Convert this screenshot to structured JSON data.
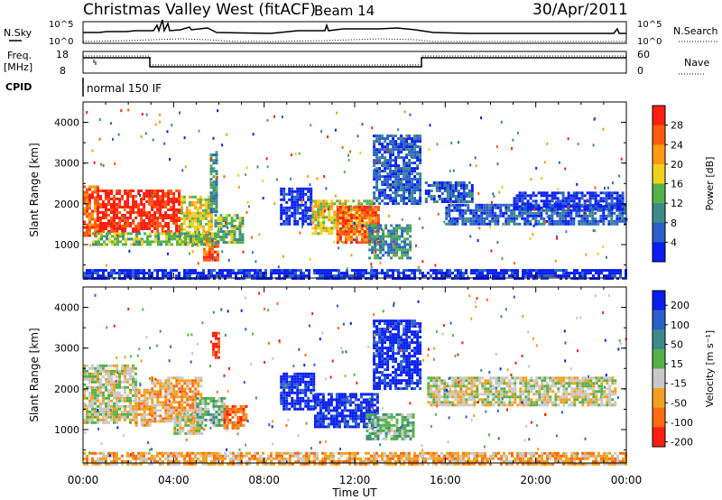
{
  "header": {
    "title": "Christmas Valley West (fitACF)",
    "beam": "Beam 14",
    "date": "30/Apr/2011"
  },
  "panels": {
    "nsky": {
      "label": "N.Sky",
      "ticks_left": [
        "10^5",
        "10^0"
      ],
      "ticks_right": [
        "10^5",
        "10^0"
      ],
      "right_label": "N.Search"
    },
    "freq": {
      "label_1": "Freq.",
      "label_2": "[MHz]",
      "ticks_left": [
        "18",
        "8"
      ],
      "ticks_right": [
        "60",
        "0"
      ],
      "right_label": "Nave"
    },
    "cpid": {
      "label": "CPID",
      "value": "normal 150 IF"
    }
  },
  "chart_data": [
    {
      "type": "heatmap",
      "name": "power",
      "xlabel": "Time UT",
      "ylabel": "Slant Range [km]",
      "x_ticks": [
        "00:00",
        "04:00",
        "08:00",
        "12:00",
        "16:00",
        "20:00",
        "00:00"
      ],
      "y_ticks": [
        "1000",
        "2000",
        "3000",
        "4000"
      ],
      "xlim": [
        0,
        24
      ],
      "ylim": [
        180,
        4500
      ],
      "colorbar": {
        "label": "Power [dB]",
        "tick_labels": [
          "4",
          "8",
          "12",
          "16",
          "20",
          "24",
          "28"
        ],
        "colors": [
          "#0a1ef0",
          "#2a60c8",
          "#3c8a8a",
          "#56b24a",
          "#f0d11e",
          "#fd9a14",
          "#fd5a10",
          "#ff1e10"
        ]
      },
      "regions": [
        {
          "t0": 0.0,
          "t1": 0.6,
          "r0": 1250,
          "r1": 2450,
          "level": 6
        },
        {
          "t0": 0.6,
          "t1": 4.3,
          "r0": 1350,
          "r1": 2350,
          "level": 7
        },
        {
          "t0": 4.3,
          "t1": 5.7,
          "r0": 950,
          "r1": 2200,
          "level": 4
        },
        {
          "t0": 5.3,
          "t1": 5.9,
          "r0": 650,
          "r1": 1250,
          "level": 6
        },
        {
          "t0": 5.8,
          "t1": 7.1,
          "r0": 1050,
          "r1": 1750,
          "level": 3
        },
        {
          "t0": 0.4,
          "t1": 5.9,
          "r0": 1000,
          "r1": 1300,
          "level": 3
        },
        {
          "t0": 5.6,
          "t1": 5.9,
          "r0": 1800,
          "r1": 3300,
          "level": 2
        },
        {
          "t0": 8.7,
          "t1": 10.1,
          "r0": 1500,
          "r1": 2400,
          "level": 0
        },
        {
          "t0": 10.1,
          "t1": 12.8,
          "r0": 1250,
          "r1": 2100,
          "level": 4
        },
        {
          "t0": 11.2,
          "t1": 13.1,
          "r0": 1050,
          "r1": 1950,
          "level": 6
        },
        {
          "t0": 12.6,
          "t1": 14.4,
          "r0": 700,
          "r1": 1500,
          "level": 2
        },
        {
          "t0": 12.8,
          "t1": 14.9,
          "r0": 2000,
          "r1": 3700,
          "level": 1
        },
        {
          "t0": 15.1,
          "t1": 17.2,
          "r0": 2050,
          "r1": 2550,
          "level": 1
        },
        {
          "t0": 16.0,
          "t1": 23.9,
          "r0": 1500,
          "r1": 2000,
          "level": 1
        },
        {
          "t0": 19.0,
          "t1": 23.9,
          "r0": 1900,
          "r1": 2300,
          "level": 0
        },
        {
          "t0": 0.0,
          "t1": 24.0,
          "r0": 180,
          "r1": 400,
          "level": 0
        }
      ]
    },
    {
      "type": "heatmap",
      "name": "velocity",
      "xlabel": "Time UT",
      "ylabel": "Slant Range [km]",
      "x_ticks": [
        "00:00",
        "04:00",
        "08:00",
        "12:00",
        "16:00",
        "20:00",
        "00:00"
      ],
      "y_ticks": [
        "1000",
        "2000",
        "3000",
        "4000"
      ],
      "xlim": [
        0,
        24
      ],
      "ylim": [
        180,
        4500
      ],
      "colorbar": {
        "label": "Velocity [m s⁻¹]",
        "tick_labels": [
          "200",
          "100",
          "50",
          "15",
          "-15",
          "-50",
          "-100",
          "-200"
        ],
        "colors": [
          "#0a1ef0",
          "#2a60c8",
          "#3c8a8a",
          "#56b24a",
          "#c8c8c8",
          "#f0a11e",
          "#fd6a14",
          "#ff1e10"
        ]
      },
      "regions": [
        {
          "t0": 0.0,
          "t1": 2.3,
          "r0": 1150,
          "r1": 2600,
          "level": 4
        },
        {
          "t0": 2.3,
          "t1": 3.0,
          "r0": 1100,
          "r1": 2000,
          "level": 5
        },
        {
          "t0": 3.0,
          "t1": 5.2,
          "r0": 1200,
          "r1": 2300,
          "level": 5
        },
        {
          "t0": 4.0,
          "t1": 5.2,
          "r0": 900,
          "r1": 1400,
          "level": 4
        },
        {
          "t0": 5.0,
          "t1": 6.2,
          "r0": 1100,
          "r1": 1800,
          "level": 3
        },
        {
          "t0": 6.2,
          "t1": 7.2,
          "r0": 1050,
          "r1": 1600,
          "level": 6
        },
        {
          "t0": 8.7,
          "t1": 10.2,
          "r0": 1500,
          "r1": 2400,
          "level": 0
        },
        {
          "t0": 10.2,
          "t1": 13.0,
          "r0": 1100,
          "r1": 1900,
          "level": 0
        },
        {
          "t0": 12.5,
          "t1": 14.6,
          "r0": 800,
          "r1": 1400,
          "level": 3
        },
        {
          "t0": 12.8,
          "t1": 14.9,
          "r0": 2000,
          "r1": 3700,
          "level": 0
        },
        {
          "t0": 15.2,
          "t1": 23.5,
          "r0": 1600,
          "r1": 2300,
          "level": 4
        },
        {
          "t0": 0.0,
          "t1": 24.0,
          "r0": 180,
          "r1": 450,
          "level": 5
        },
        {
          "t0": 5.7,
          "t1": 5.95,
          "r0": 2800,
          "r1": 3400,
          "level": 7
        }
      ]
    }
  ]
}
